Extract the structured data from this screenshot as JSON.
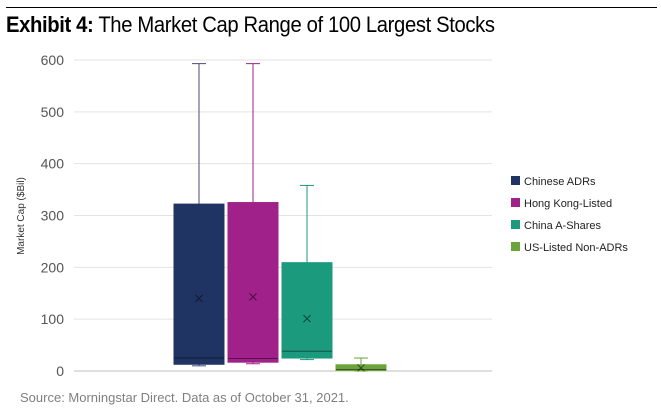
{
  "header": {
    "title_prefix": "Exhibit 4:",
    "title_main": "The Market Cap Range of 100 Largest Stocks"
  },
  "footer": {
    "source": "Source: Morningstar Direct. Data as of October 31, 2021."
  },
  "chart_data": {
    "type": "box",
    "title": "The Market Cap Range of 100 Largest Stocks",
    "xlabel": "",
    "ylabel": "Market Cap ($Bil)",
    "ylim": [
      0,
      600
    ],
    "yticks": [
      0,
      100,
      200,
      300,
      400,
      500,
      600
    ],
    "grid": true,
    "legend_position": "right",
    "series": [
      {
        "name": "Chinese ADRs",
        "color": "#1f3462",
        "whisker_color": "#4a4a7a",
        "min": 10,
        "q1": 13,
        "median": 25,
        "q3": 322,
        "max": 593,
        "mean": 140
      },
      {
        "name": "Hong Kong-Listed",
        "color": "#a0218a",
        "whisker_color": "#a0218a",
        "min": 14,
        "q1": 17,
        "median": 24,
        "q3": 325,
        "max": 593,
        "mean": 143
      },
      {
        "name": "China A-Shares",
        "color": "#1b9a7d",
        "whisker_color": "#1b9a7d",
        "min": 22,
        "q1": 25,
        "median": 38,
        "q3": 209,
        "max": 358,
        "mean": 101
      },
      {
        "name": "US-Listed Non-ADRs",
        "color": "#6aa43a",
        "whisker_color": "#6aa43a",
        "min": 0,
        "q1": 1,
        "median": 3,
        "q3": 12,
        "max": 25,
        "mean": 6
      }
    ]
  }
}
